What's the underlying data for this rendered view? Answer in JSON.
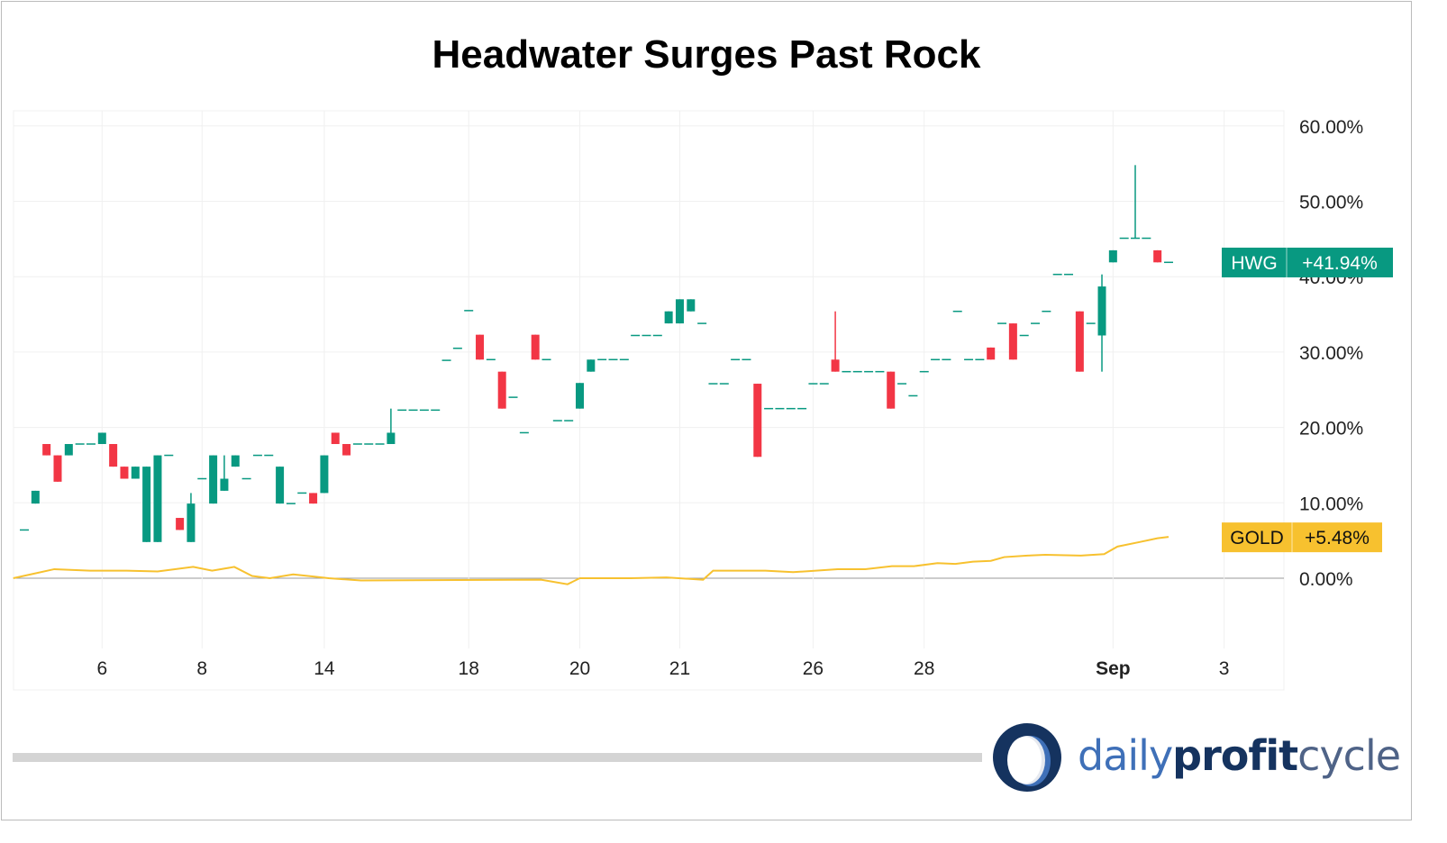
{
  "chart_data": {
    "type": "candlestick",
    "title": "Headwater Surges Past Rock",
    "ylim": [
      -8,
      60
    ],
    "y_ticks": [
      0,
      10,
      20,
      30,
      40,
      50,
      60
    ],
    "y_tick_labels": [
      "0.00%",
      "10.00%",
      "20.00%",
      "30.00%",
      "40.00%",
      "50.00%",
      "60.00%"
    ],
    "x_ticks": [
      {
        "index": 7,
        "label": "6"
      },
      {
        "index": 16,
        "label": "8"
      },
      {
        "index": 27,
        "label": "14"
      },
      {
        "index": 40,
        "label": "18"
      },
      {
        "index": 50,
        "label": "20"
      },
      {
        "index": 59,
        "label": "21"
      },
      {
        "index": 71,
        "label": "26"
      },
      {
        "index": 81,
        "label": "28"
      },
      {
        "index": 98,
        "label": "Sep",
        "bold": true
      },
      {
        "index": 108,
        "label": "3"
      }
    ],
    "grid": true,
    "series": [
      {
        "name": "HWG",
        "kind": "candlestick",
        "up_color": "#089981",
        "down_color": "#f23645",
        "last_label": "+41.94%",
        "ohlc": [
          [
            6.4,
            6.4,
            6.4,
            6.4
          ],
          [
            9.9,
            11.6,
            9.9,
            11.6
          ],
          [
            17.8,
            17.8,
            16.3,
            16.3
          ],
          [
            16.3,
            16.3,
            12.8,
            12.8
          ],
          [
            16.3,
            17.8,
            16.3,
            17.8
          ],
          [
            17.8,
            17.8,
            17.8,
            17.8
          ],
          [
            17.8,
            17.8,
            17.8,
            17.8
          ],
          [
            17.8,
            19.3,
            17.8,
            19.3
          ],
          [
            17.8,
            17.8,
            14.8,
            14.8
          ],
          [
            14.8,
            14.8,
            13.2,
            13.2
          ],
          [
            13.2,
            14.8,
            13.2,
            14.8
          ],
          [
            4.8,
            14.8,
            4.8,
            14.8
          ],
          [
            4.8,
            16.3,
            4.8,
            16.3
          ],
          [
            16.3,
            16.3,
            16.3,
            16.3
          ],
          [
            8,
            8,
            6.4,
            6.4
          ],
          [
            4.8,
            11.3,
            4.8,
            9.9
          ],
          [
            13.2,
            13.2,
            13.2,
            13.2
          ],
          [
            9.9,
            16.3,
            9.9,
            16.3
          ],
          [
            11.6,
            16.3,
            11.6,
            13.2
          ],
          [
            14.8,
            16.3,
            14.8,
            16.3
          ],
          [
            13.2,
            13.2,
            13.2,
            13.2
          ],
          [
            16.3,
            16.3,
            16.3,
            16.3
          ],
          [
            16.3,
            16.3,
            16.3,
            16.3
          ],
          [
            9.9,
            14.8,
            9.9,
            14.8
          ],
          [
            9.9,
            9.9,
            9.9,
            9.9
          ],
          [
            11.3,
            11.3,
            11.3,
            11.3
          ],
          [
            11.3,
            11.3,
            9.9,
            9.9
          ],
          [
            11.3,
            16.3,
            11.3,
            16.3
          ],
          [
            19.3,
            19.3,
            17.8,
            17.8
          ],
          [
            17.8,
            17.8,
            16.3,
            16.3
          ],
          [
            17.8,
            17.8,
            17.8,
            17.8
          ],
          [
            17.8,
            17.8,
            17.8,
            17.8
          ],
          [
            17.8,
            17.8,
            17.8,
            17.8
          ],
          [
            17.8,
            22.5,
            17.8,
            19.3
          ],
          [
            22.3,
            22.3,
            22.3,
            22.3
          ],
          [
            22.3,
            22.3,
            22.3,
            22.3
          ],
          [
            22.3,
            22.3,
            22.3,
            22.3
          ],
          [
            22.3,
            22.3,
            22.3,
            22.3
          ],
          [
            28.9,
            28.9,
            28.9,
            28.9
          ],
          [
            30.5,
            30.5,
            30.5,
            30.5
          ],
          [
            35.5,
            35.5,
            35.5,
            35.5
          ],
          [
            32.3,
            32.3,
            29,
            29
          ],
          [
            29,
            29,
            29,
            29
          ],
          [
            27.4,
            27.4,
            22.5,
            22.5
          ],
          [
            24,
            24,
            24,
            24
          ],
          [
            19.3,
            19.3,
            19.3,
            19.3
          ],
          [
            32.3,
            32.3,
            29,
            29
          ],
          [
            29,
            29,
            29,
            29
          ],
          [
            20.9,
            20.9,
            20.9,
            20.9
          ],
          [
            20.9,
            20.9,
            20.9,
            20.9
          ],
          [
            22.5,
            25.9,
            22.5,
            25.9
          ],
          [
            27.4,
            29,
            27.4,
            29
          ],
          [
            29,
            29,
            29,
            29
          ],
          [
            29,
            29,
            29,
            29
          ],
          [
            29,
            29,
            29,
            29
          ],
          [
            32.2,
            32.2,
            32.2,
            32.2
          ],
          [
            32.2,
            32.2,
            32.2,
            32.2
          ],
          [
            32.2,
            32.2,
            32.2,
            32.2
          ],
          [
            33.8,
            35.4,
            33.8,
            35.4
          ],
          [
            33.8,
            37,
            33.8,
            37
          ],
          [
            35.4,
            37,
            35.4,
            37
          ],
          [
            33.8,
            33.8,
            33.8,
            33.8
          ],
          [
            25.8,
            25.8,
            25.8,
            25.8
          ],
          [
            25.8,
            25.8,
            25.8,
            25.8
          ],
          [
            29,
            29,
            29,
            29
          ],
          [
            29,
            29,
            29,
            29
          ],
          [
            25.8,
            25.8,
            16.1,
            16.1
          ],
          [
            22.5,
            22.5,
            22.5,
            22.5
          ],
          [
            22.5,
            22.5,
            22.5,
            22.5
          ],
          [
            22.5,
            22.5,
            22.5,
            22.5
          ],
          [
            22.5,
            22.5,
            22.5,
            22.5
          ],
          [
            25.8,
            25.8,
            25.8,
            25.8
          ],
          [
            25.8,
            25.8,
            25.8,
            25.8
          ],
          [
            29,
            35.4,
            27.4,
            27.4
          ],
          [
            27.4,
            27.4,
            27.4,
            27.4
          ],
          [
            27.4,
            27.4,
            27.4,
            27.4
          ],
          [
            27.4,
            27.4,
            27.4,
            27.4
          ],
          [
            27.4,
            27.4,
            27.4,
            27.4
          ],
          [
            27.4,
            27.4,
            22.5,
            22.5
          ],
          [
            25.8,
            25.8,
            25.8,
            25.8
          ],
          [
            24.2,
            24.2,
            24.2,
            24.2
          ],
          [
            27.4,
            27.4,
            27.4,
            27.4
          ],
          [
            29,
            29,
            29,
            29
          ],
          [
            29,
            29,
            29,
            29
          ],
          [
            35.4,
            35.4,
            35.4,
            35.4
          ],
          [
            29,
            29,
            29,
            29
          ],
          [
            29,
            29,
            29,
            29
          ],
          [
            30.6,
            30.6,
            29,
            29
          ],
          [
            33.8,
            33.8,
            33.8,
            33.8
          ],
          [
            33.8,
            33.8,
            29,
            29
          ],
          [
            32.2,
            32.2,
            32.2,
            32.2
          ],
          [
            33.8,
            33.8,
            33.8,
            33.8
          ],
          [
            35.4,
            35.4,
            35.4,
            35.4
          ],
          [
            40.3,
            40.3,
            40.3,
            40.3
          ],
          [
            40.3,
            40.3,
            40.3,
            40.3
          ],
          [
            35.4,
            35.4,
            27.4,
            27.4
          ],
          [
            33.8,
            33.8,
            33.8,
            33.8
          ],
          [
            32.2,
            40.3,
            27.4,
            38.7
          ],
          [
            41.9,
            43.5,
            41.9,
            43.5
          ],
          [
            45.1,
            45.1,
            45.1,
            45.1
          ],
          [
            45.1,
            54.8,
            45.1,
            45.1
          ],
          [
            45.1,
            45.1,
            45.1,
            45.1
          ],
          [
            43.5,
            43.5,
            41.9,
            41.9
          ],
          [
            41.9,
            41.9,
            41.9,
            41.9
          ]
        ]
      },
      {
        "name": "GOLD",
        "kind": "line",
        "color": "#f7c12f",
        "last_label": "+5.48%",
        "points": [
          [
            -1,
            0
          ],
          [
            2.7,
            1.2
          ],
          [
            5.9,
            1
          ],
          [
            9.2,
            1
          ],
          [
            12,
            0.9
          ],
          [
            15.2,
            1.5
          ],
          [
            16.9,
            1
          ],
          [
            18.9,
            1.5
          ],
          [
            20.5,
            0.3
          ],
          [
            22.1,
            0
          ],
          [
            24.2,
            0.5
          ],
          [
            26.2,
            0.2
          ],
          [
            27.4,
            0
          ],
          [
            30.3,
            -0.3
          ],
          [
            46.5,
            -0.2
          ],
          [
            48.9,
            -0.8
          ],
          [
            50,
            0
          ],
          [
            54.6,
            0
          ],
          [
            57.8,
            0.1
          ],
          [
            61.1,
            -0.2
          ],
          [
            62,
            1
          ],
          [
            66.7,
            1
          ],
          [
            69.2,
            0.8
          ],
          [
            73.2,
            1.2
          ],
          [
            75.7,
            1.2
          ],
          [
            78.1,
            1.6
          ],
          [
            80.1,
            1.6
          ],
          [
            82.2,
            2
          ],
          [
            83.8,
            1.9
          ],
          [
            85.4,
            2.2
          ],
          [
            87,
            2.3
          ],
          [
            88.2,
            2.8
          ],
          [
            90.3,
            3
          ],
          [
            91.9,
            3.1
          ],
          [
            95.1,
            3
          ],
          [
            97.2,
            3.2
          ],
          [
            98.4,
            4.2
          ],
          [
            100.4,
            4.8
          ],
          [
            102,
            5.3
          ],
          [
            103,
            5.48
          ]
        ]
      }
    ]
  },
  "logo": {
    "part1": "daily",
    "part2": "profit",
    "part3": "cycle"
  }
}
